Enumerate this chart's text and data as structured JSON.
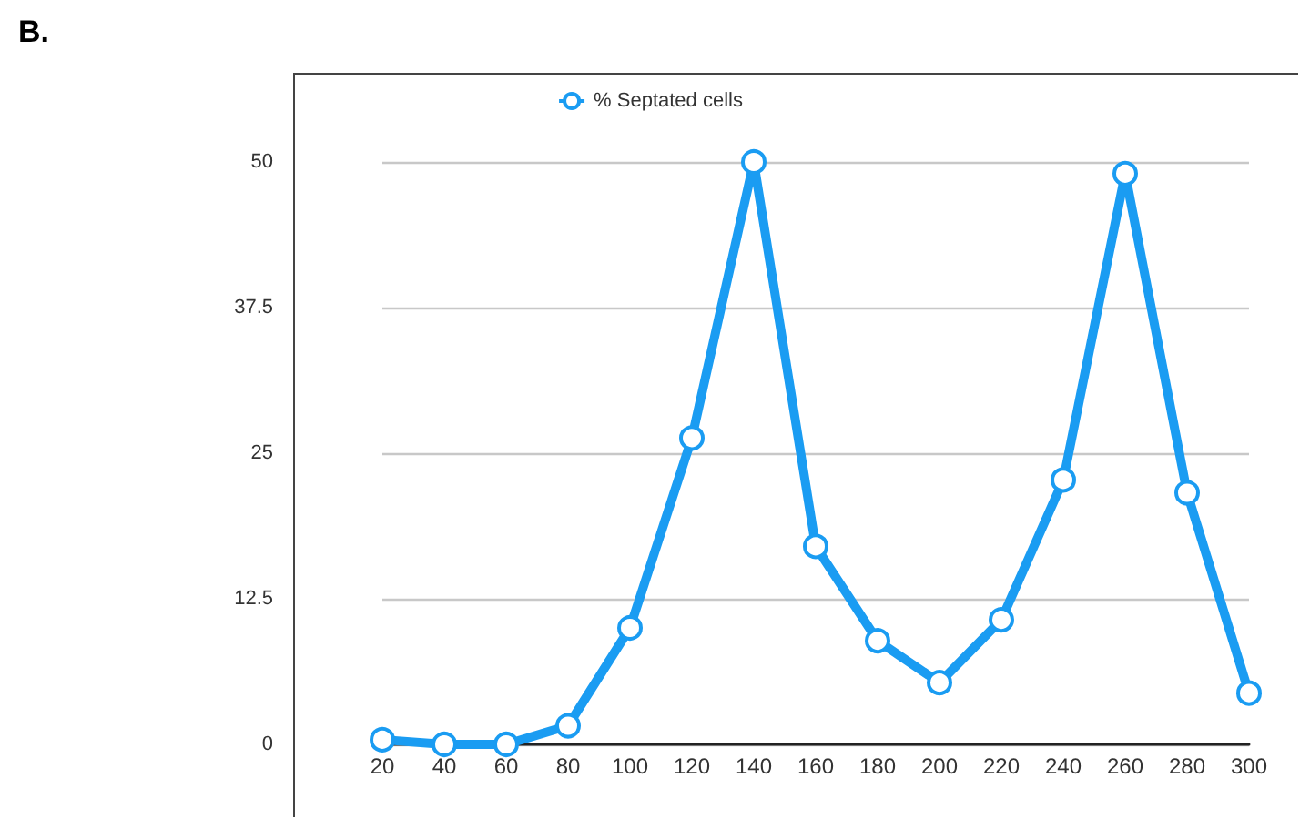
{
  "chart_data": {
    "type": "line",
    "categories": [
      "20",
      "40",
      "60",
      "80",
      "100",
      "120",
      "140",
      "160",
      "180",
      "200",
      "220",
      "240",
      "260",
      "280",
      "300"
    ],
    "series": [
      {
        "name": "% Septated cells",
        "color": "#1a9cf2",
        "values": [
          0.4,
          0,
          0,
          1.6,
          10.0,
          26.3,
          50,
          17.0,
          8.9,
          5.3,
          10.7,
          22.7,
          49.0,
          21.6,
          4.4
        ]
      }
    ],
    "ylim": [
      0,
      57.5
    ],
    "yticks": [
      0,
      12.5,
      25,
      37.5,
      50
    ],
    "grid": "y",
    "legend": "top",
    "marker": "circle",
    "line_style": "solid",
    "annotations": [
      "B."
    ]
  }
}
